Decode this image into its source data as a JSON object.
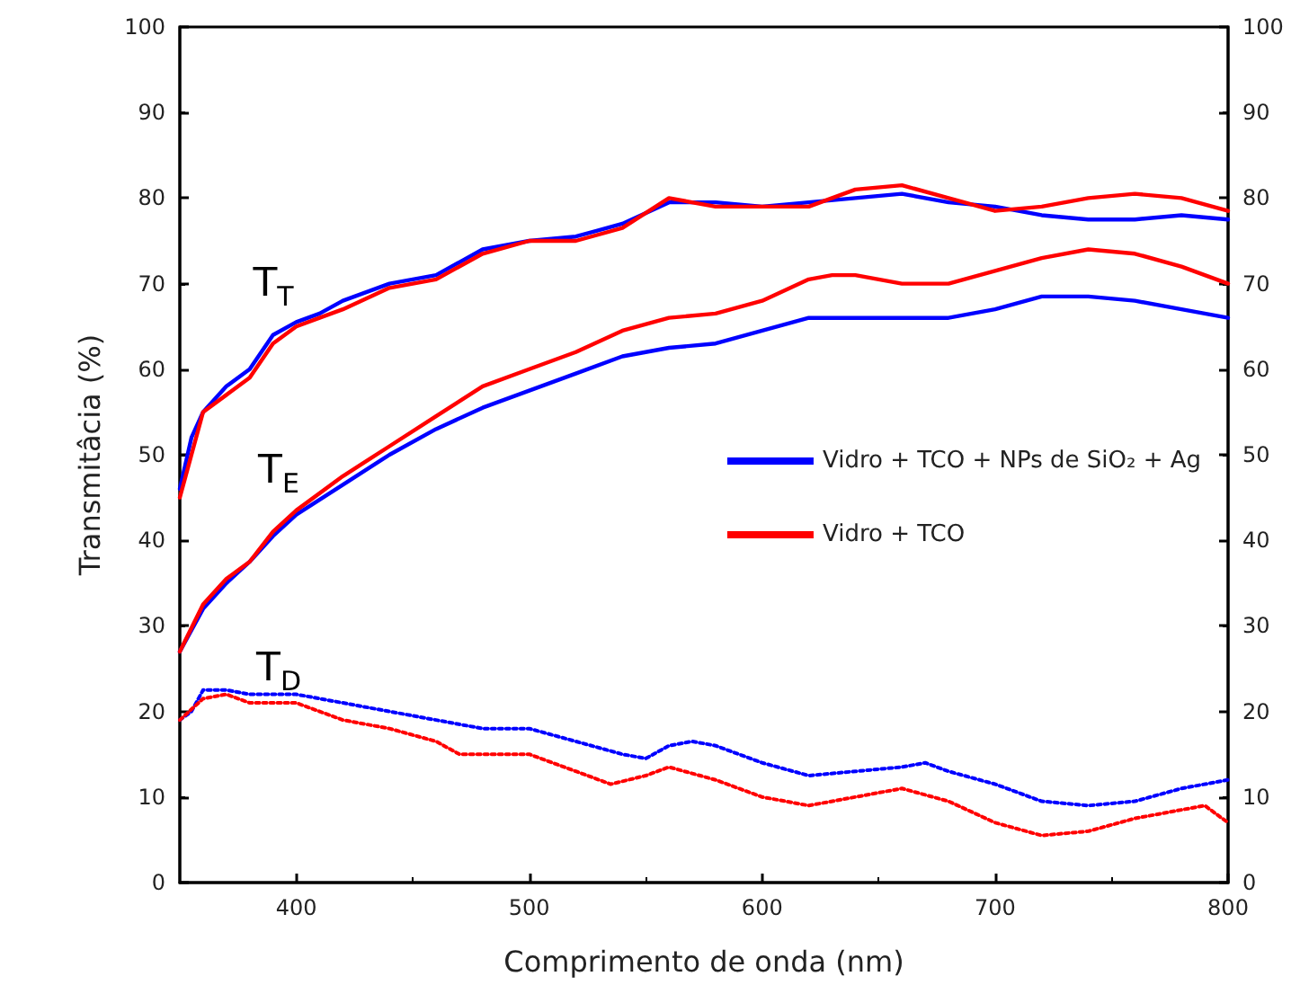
{
  "chart_data": {
    "type": "line",
    "xlabel": "Comprimento de onda (nm)",
    "ylabel": "Transmitâcia (%)",
    "xlim": [
      350,
      800
    ],
    "xticks": [
      400,
      500,
      600,
      700,
      800
    ],
    "ylim": [
      0,
      100
    ],
    "yticks": [
      0,
      10,
      20,
      30,
      40,
      50,
      60,
      70,
      80,
      90,
      100
    ],
    "y2lim": [
      0,
      100
    ],
    "y2ticks": [
      0,
      10,
      20,
      30,
      40,
      50,
      60,
      70,
      80,
      90,
      100
    ],
    "legend": "right",
    "marker": "none",
    "annotations": [
      "T$_{T}$",
      "T$_{E}$",
      "T$_{D}$"
    ],
    "series": [
      {
        "name": "Vidro + TCO + NPs de SiO₂ + Ag",
        "color": "#0000ff",
        "line_style": "solid",
        "x": [
          350,
          355,
          360,
          370,
          380,
          390,
          400,
          410,
          420,
          440,
          460,
          480,
          500,
          520,
          540,
          560,
          580,
          600,
          620,
          640,
          660,
          680,
          700,
          720,
          740,
          760,
          780,
          800
        ],
        "values": [
          46,
          52,
          55,
          58,
          60,
          64,
          65.5,
          66.5,
          68,
          70,
          71,
          74,
          75,
          75.5,
          77,
          79.5,
          79.5,
          79,
          79.5,
          80,
          80.5,
          79.5,
          79,
          78,
          77.5,
          77.5,
          78,
          77.5
        ]
      },
      {
        "name": "Vidro + TCO",
        "color": "#ff0000",
        "line_style": "solid",
        "x": [
          350,
          355,
          360,
          370,
          380,
          390,
          400,
          410,
          420,
          440,
          460,
          480,
          500,
          520,
          540,
          560,
          580,
          600,
          620,
          640,
          660,
          680,
          700,
          720,
          740,
          760,
          780,
          800
        ],
        "values": [
          45,
          50,
          55,
          57,
          59,
          63,
          65,
          66,
          67,
          69.5,
          70.5,
          73.5,
          75,
          75,
          76.5,
          80,
          79,
          79,
          79,
          81,
          81.5,
          80,
          78.5,
          79,
          80,
          80.5,
          80,
          78.5
        ]
      },
      {
        "color": "#0000ff",
        "line_style": "solid",
        "x": [
          350,
          360,
          370,
          380,
          390,
          400,
          420,
          440,
          460,
          480,
          500,
          520,
          540,
          560,
          580,
          600,
          620,
          640,
          660,
          680,
          700,
          720,
          740,
          760,
          780,
          800
        ],
        "values": [
          27,
          32,
          35,
          37.5,
          40.5,
          43,
          46.5,
          50,
          53,
          55.5,
          57.5,
          59.5,
          61.5,
          62.5,
          63,
          64.5,
          66,
          66,
          66,
          66,
          67,
          68.5,
          68.5,
          68,
          67,
          66
        ]
      },
      {
        "color": "#ff0000",
        "line_style": "solid",
        "x": [
          350,
          360,
          370,
          380,
          390,
          400,
          420,
          440,
          460,
          480,
          500,
          520,
          540,
          560,
          580,
          600,
          620,
          630,
          640,
          660,
          680,
          700,
          720,
          740,
          760,
          780,
          800
        ],
        "values": [
          27,
          32.5,
          35.5,
          37.5,
          41,
          43.5,
          47.5,
          51,
          54.5,
          58,
          60,
          62,
          64.5,
          66,
          66.5,
          68,
          70.5,
          71,
          71,
          70,
          70,
          71.5,
          73,
          74,
          73.5,
          72,
          70
        ]
      },
      {
        "color": "#0000ff",
        "line_style": "dotted",
        "x": [
          350,
          355,
          360,
          370,
          380,
          400,
          420,
          440,
          460,
          480,
          500,
          520,
          540,
          550,
          560,
          570,
          580,
          600,
          620,
          640,
          660,
          670,
          680,
          700,
          720,
          740,
          760,
          780,
          800
        ],
        "values": [
          19,
          20,
          22.5,
          22.5,
          22,
          22,
          21,
          20,
          19,
          18,
          18,
          16.5,
          15,
          14.5,
          16,
          16.5,
          16,
          14,
          12.5,
          13,
          13.5,
          14,
          13,
          11.5,
          9.5,
          9,
          9.5,
          11,
          12
        ]
      },
      {
        "color": "#ff0000",
        "line_style": "dotted",
        "x": [
          350,
          360,
          370,
          380,
          400,
          420,
          440,
          460,
          470,
          480,
          500,
          520,
          535,
          550,
          560,
          580,
          600,
          620,
          640,
          660,
          680,
          700,
          720,
          740,
          760,
          780,
          790,
          800
        ],
        "values": [
          19,
          21.5,
          22,
          21,
          21,
          19,
          18,
          16.5,
          15,
          15,
          15,
          13,
          11.5,
          12.5,
          13.5,
          12,
          10,
          9,
          10,
          11,
          9.5,
          7,
          5.5,
          6,
          7.5,
          8.5,
          9,
          7
        ]
      }
    ]
  }
}
